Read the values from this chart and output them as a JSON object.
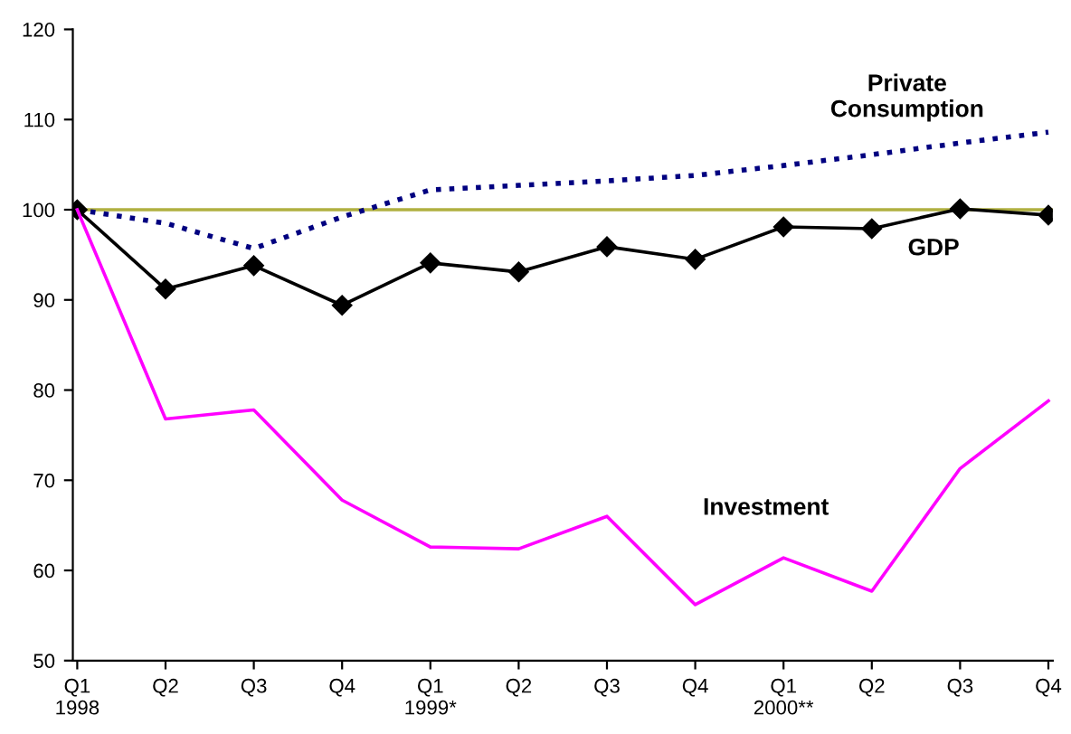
{
  "chart_data": {
    "type": "line",
    "categories": [
      "Q1\n1998",
      "Q2",
      "Q3",
      "Q4",
      "Q1\n1999*",
      "Q2",
      "Q3",
      "Q4",
      "Q1\n2000**",
      "Q2",
      "Q3",
      "Q4"
    ],
    "series": [
      {
        "name": "Private\nConsumption",
        "color": "#000080",
        "line_style": "dotted",
        "marker": "none",
        "values": [
          100,
          98.5,
          95.7,
          99.2,
          102.2,
          102.7,
          103.2,
          103.8,
          104.9,
          106.1,
          107.4,
          108.6
        ]
      },
      {
        "name": "GDP",
        "color": "#000000",
        "line_style": "solid",
        "marker": "diamond",
        "values": [
          100,
          91.2,
          93.8,
          89.4,
          94.1,
          93.1,
          95.9,
          94.5,
          98.1,
          97.9,
          100.1,
          99.4
        ]
      },
      {
        "name": "Investment",
        "color": "#ff00ff",
        "line_style": "solid",
        "marker": "none",
        "values": [
          100,
          76.8,
          77.8,
          67.8,
          62.6,
          62.4,
          66.0,
          56.2,
          61.4,
          57.7,
          71.3,
          78.8
        ]
      }
    ],
    "ylim": [
      50,
      120
    ],
    "yticks": [
      50,
      60,
      70,
      80,
      90,
      100,
      110,
      120
    ],
    "ref_lines": [
      {
        "axis": "y",
        "value": 100,
        "color": "#b0b040"
      }
    ],
    "grid": false,
    "legend": false
  }
}
